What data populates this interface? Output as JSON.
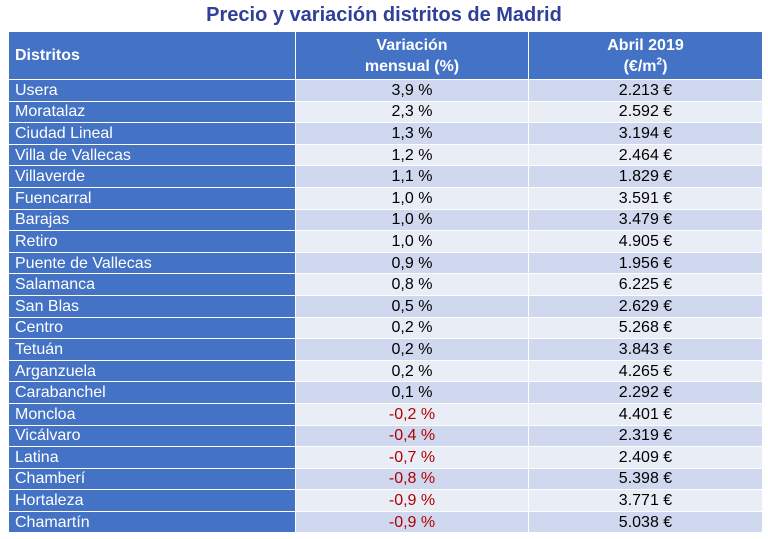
{
  "title": "Precio y variación distritos de Madrid",
  "colors": {
    "header_bg": "#4472c4",
    "title": "#2f3f9a",
    "negative": "#b00000",
    "row_a": "#cfd8ee",
    "row_b": "#e9edf6"
  },
  "chart_data": {
    "type": "table",
    "title": "Precio y variación distritos de Madrid",
    "columns": [
      "Distritos",
      "Variación mensual (%)",
      "Abril 2019 (€/m2)"
    ],
    "header": {
      "col1": "Distritos",
      "col2_line1": "Variación",
      "col2_line2": "mensual (%)",
      "col3_line1": "Abril 2019",
      "col3_line2_pre": "(€/m",
      "col3_line2_sup": "2",
      "col3_line2_post": ")"
    },
    "rows": [
      {
        "district": "Usera",
        "variation": "3,9 %",
        "price": "2.213 €"
      },
      {
        "district": "Moratalaz",
        "variation": "2,3 %",
        "price": "2.592 €"
      },
      {
        "district": "Ciudad Lineal",
        "variation": "1,3 %",
        "price": "3.194 €"
      },
      {
        "district": "Villa de Vallecas",
        "variation": "1,2 %",
        "price": "2.464 €"
      },
      {
        "district": "Villaverde",
        "variation": "1,1 %",
        "price": "1.829 €"
      },
      {
        "district": "Fuencarral",
        "variation": "1,0 %",
        "price": "3.591 €"
      },
      {
        "district": "Barajas",
        "variation": "1,0 %",
        "price": "3.479 €"
      },
      {
        "district": "Retiro",
        "variation": "1,0 %",
        "price": "4.905 €"
      },
      {
        "district": "Puente de Vallecas",
        "variation": "0,9 %",
        "price": "1.956 €"
      },
      {
        "district": "Salamanca",
        "variation": "0,8 %",
        "price": "6.225 €"
      },
      {
        "district": "San Blas",
        "variation": "0,5 %",
        "price": "2.629 €"
      },
      {
        "district": "Centro",
        "variation": "0,2 %",
        "price": "5.268 €"
      },
      {
        "district": "Tetuán",
        "variation": "0,2 %",
        "price": "3.843 €"
      },
      {
        "district": "Arganzuela",
        "variation": "0,2 %",
        "price": "4.265 €"
      },
      {
        "district": "Carabanchel",
        "variation": "0,1 %",
        "price": "2.292 €"
      },
      {
        "district": "Moncloa",
        "variation": "-0,2 %",
        "price": "4.401 €"
      },
      {
        "district": "Vicálvaro",
        "variation": "-0,4 %",
        "price": "2.319 €"
      },
      {
        "district": "Latina",
        "variation": "-0,7 %",
        "price": "2.409 €"
      },
      {
        "district": "Chamberí",
        "variation": "-0,8 %",
        "price": "5.398 €"
      },
      {
        "district": "Hortaleza",
        "variation": "-0,9 %",
        "price": "3.771 €"
      },
      {
        "district": "Chamartín",
        "variation": "-0,9 %",
        "price": "5.038 €"
      }
    ]
  }
}
